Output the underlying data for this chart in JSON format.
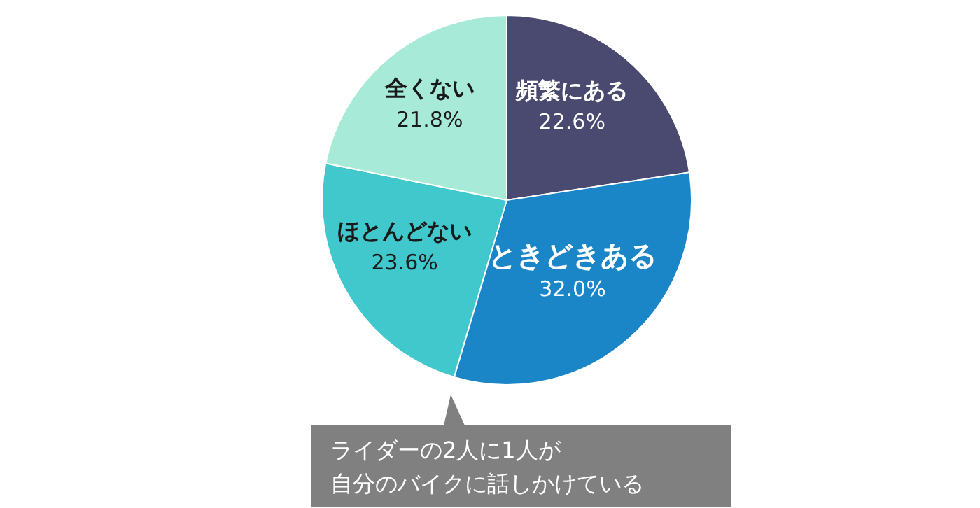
{
  "chart_data": {
    "type": "pie",
    "categories": [
      "頻繁にある",
      "ときどきある",
      "ほとんどない",
      "全くない"
    ],
    "values": [
      22.6,
      32.0,
      23.6,
      21.8
    ],
    "value_labels": [
      "22.6%",
      "32.0%",
      "23.6%",
      "21.8%"
    ],
    "colors": [
      "#4a4a70",
      "#1a86c8",
      "#40c8cc",
      "#a8ead8"
    ],
    "legend": false,
    "annotations": [
      "ライダーの2人に1人が",
      "自分のバイクに話しかけている"
    ]
  }
}
